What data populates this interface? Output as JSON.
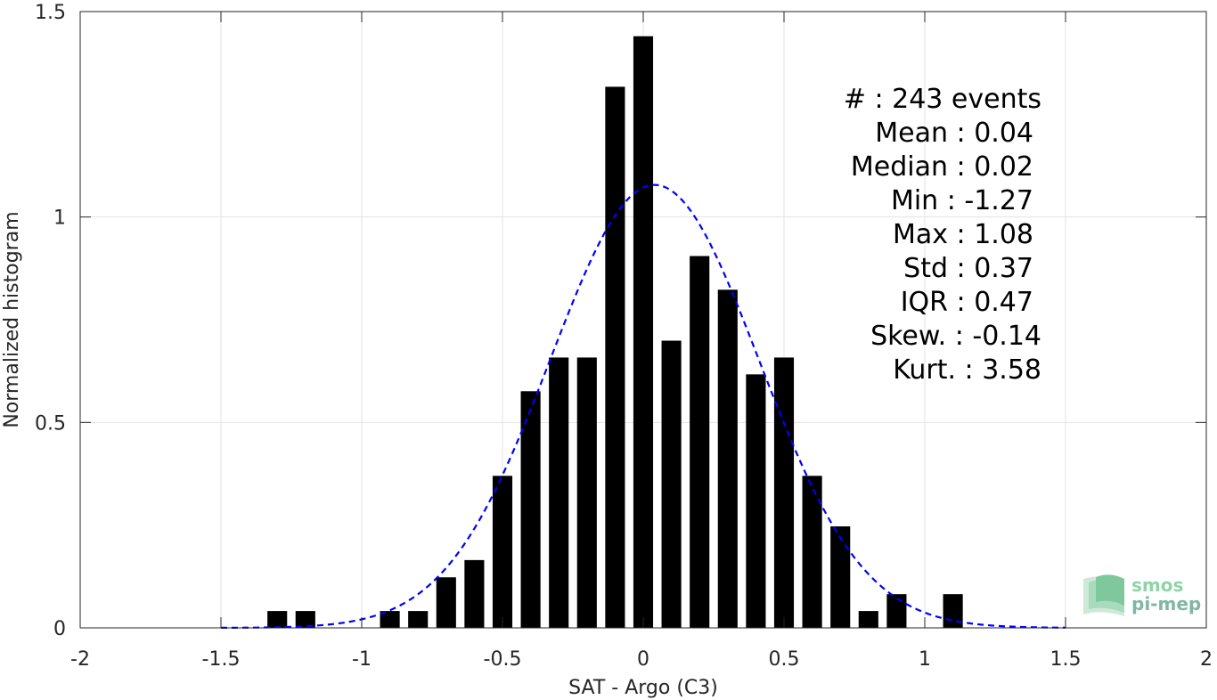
{
  "chart_data": {
    "type": "bar",
    "xlabel": "SAT - Argo (C3)",
    "ylabel": "Normalized histogram",
    "xlim": [
      -2,
      2
    ],
    "ylim": [
      0,
      1.5
    ],
    "grid": true,
    "x_ticks": [
      "-2",
      "-1.5",
      "-1",
      "-0.5",
      "0",
      "0.5",
      "1",
      "1.5",
      "2"
    ],
    "y_ticks": [
      "0",
      "0.5",
      "1",
      "1.5"
    ],
    "bar_color": "#000000",
    "bins": {
      "centers": [
        -1.3,
        -1.2,
        -0.9,
        -0.8,
        -0.7,
        -0.6,
        -0.5,
        -0.4,
        -0.3,
        -0.2,
        -0.1,
        0.0,
        0.1,
        0.2,
        0.3,
        0.4,
        0.5,
        0.6,
        0.7,
        0.8,
        0.9,
        1.1
      ],
      "values": [
        0.041,
        0.041,
        0.041,
        0.041,
        0.123,
        0.165,
        0.37,
        0.576,
        0.658,
        0.658,
        1.317,
        1.44,
        0.699,
        0.905,
        0.823,
        0.617,
        0.658,
        0.37,
        0.247,
        0.041,
        0.082,
        0.082
      ],
      "width": 0.07
    },
    "series": [
      {
        "type": "line",
        "style": "dashed",
        "color": "#0000ff",
        "distribution": "normal",
        "mean": 0.04,
        "std": 0.37,
        "x_range": [
          -1.5,
          1.5
        ]
      }
    ],
    "annotation": {
      "lines": [
        "#  : 243 events",
        "Mean : 0.04",
        "Median : 0.02",
        "Min : -1.27",
        "Max : 1.08",
        "Std : 0.37",
        "IQR : 0.47",
        "Skew. : -0.14",
        "Kurt. : 3.58"
      ],
      "placement": "top-right"
    }
  },
  "logo": {
    "line1": "smos",
    "line2": "pi-mep",
    "color1": "#8fd3a8",
    "color2": "#7fb8a0"
  }
}
